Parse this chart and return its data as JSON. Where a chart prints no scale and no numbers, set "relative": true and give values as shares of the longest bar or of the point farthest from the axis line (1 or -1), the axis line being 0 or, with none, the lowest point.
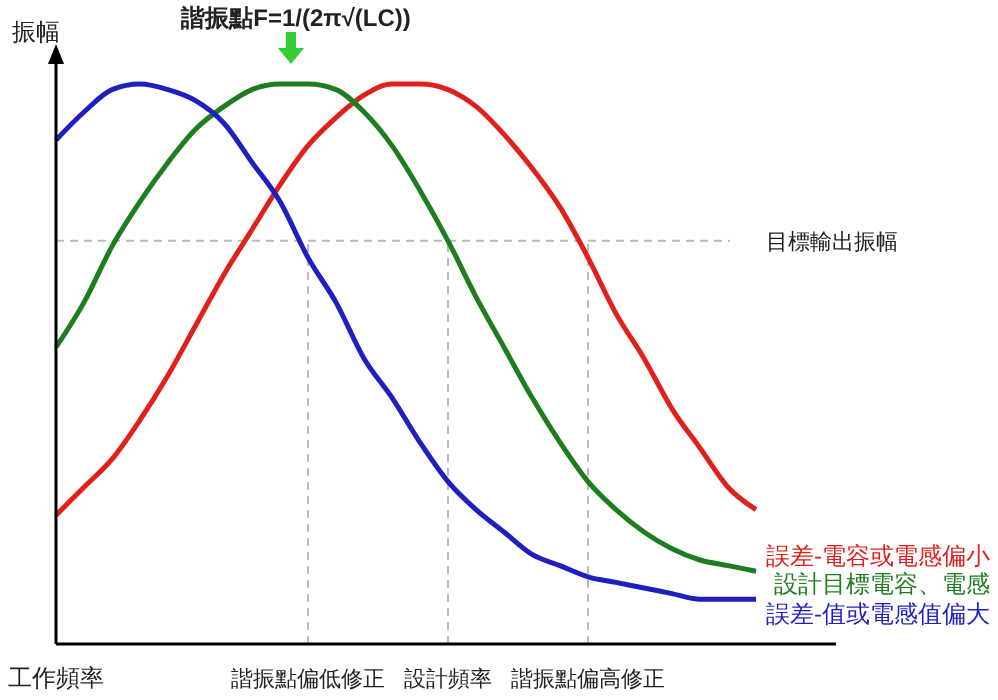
{
  "chart_data": {
    "type": "line",
    "title": "諧振點F=1/(2π√(LC))",
    "xlabel": "工作頻率",
    "ylabel": "振幅",
    "relative": true,
    "grid": "x",
    "line_style": "solid",
    "marker": "none",
    "categories": [
      null,
      null,
      null,
      null,
      null,
      null,
      null,
      null,
      null,
      "諧振點偏低修正",
      null,
      null,
      null,
      null,
      "設計頻率",
      null,
      null,
      null,
      null,
      "諧振點偏高修正",
      null,
      null,
      null,
      null,
      null,
      null
    ],
    "series": [
      {
        "name": "誤差-電容或電感偏小",
        "color": "#e0201c",
        "values": [
          0.23,
          0.28,
          0.33,
          0.4,
          0.48,
          0.57,
          0.66,
          0.74,
          0.82,
          0.89,
          0.94,
          0.98,
          1.0,
          1.0,
          0.99,
          0.96,
          0.91,
          0.85,
          0.78,
          0.69,
          0.59,
          0.51,
          0.42,
          0.35,
          0.28,
          0.24
        ]
      },
      {
        "name": "設計目標電容、電感",
        "color": "#1e7d1e",
        "values": [
          0.53,
          0.61,
          0.71,
          0.79,
          0.86,
          0.92,
          0.96,
          0.99,
          1.0,
          1.0,
          0.99,
          0.95,
          0.89,
          0.81,
          0.72,
          0.62,
          0.53,
          0.44,
          0.36,
          0.29,
          0.24,
          0.2,
          0.17,
          0.15,
          0.14,
          0.13
        ]
      },
      {
        "name": "誤差-值或電感值偏大",
        "color": "#1f1fc0",
        "values": [
          0.9,
          0.95,
          0.99,
          1.0,
          0.99,
          0.97,
          0.93,
          0.86,
          0.79,
          0.69,
          0.61,
          0.51,
          0.44,
          0.36,
          0.29,
          0.24,
          0.2,
          0.16,
          0.14,
          0.12,
          0.11,
          0.1,
          0.09,
          0.08,
          0.08,
          0.08
        ]
      }
    ],
    "ref_lines": [
      {
        "axis": "y",
        "value": 0.72,
        "label": "目標輸出振幅",
        "color": "#bbbbbb",
        "line_style": "dashed"
      }
    ]
  }
}
